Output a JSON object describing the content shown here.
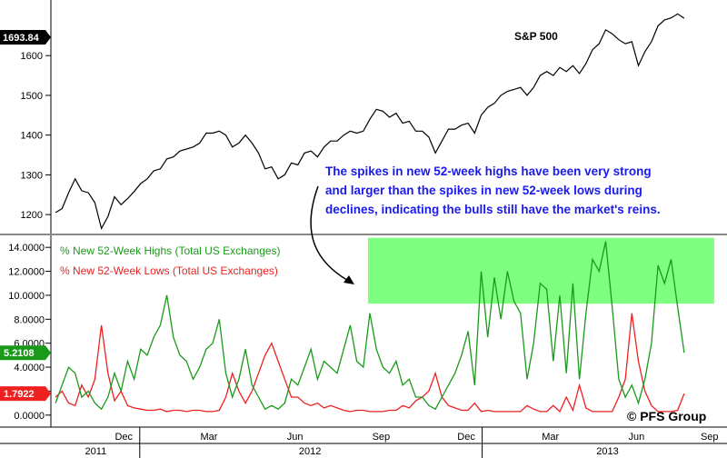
{
  "chart_data": [
    {
      "type": "line",
      "title": "S&P 500",
      "ylabel": "",
      "ylim": [
        1150,
        1740
      ],
      "yticks": [
        "1200",
        "1300",
        "1400",
        "1500",
        "1600"
      ],
      "last_value_label": "1693.84",
      "x_months": [
        "Dec",
        "Mar",
        "Jun",
        "Sep",
        "Dec",
        "Mar",
        "Jun",
        "Sep"
      ],
      "x_years": [
        "2011",
        "2012",
        "2013"
      ],
      "series": [
        {
          "name": "S&P 500",
          "color": "#000000",
          "x": [
            "2011-10-03",
            "2011-10-10",
            "2011-10-17",
            "2011-10-24",
            "2011-10-31",
            "2011-11-07",
            "2011-11-14",
            "2011-11-21",
            "2011-11-28",
            "2011-12-05",
            "2011-12-12",
            "2011-12-19",
            "2011-12-26",
            "2012-01-02",
            "2012-01-09",
            "2012-01-16",
            "2012-01-23",
            "2012-01-30",
            "2012-02-06",
            "2012-02-13",
            "2012-02-20",
            "2012-02-27",
            "2012-03-05",
            "2012-03-12",
            "2012-03-19",
            "2012-03-26",
            "2012-04-02",
            "2012-04-09",
            "2012-04-16",
            "2012-04-23",
            "2012-04-30",
            "2012-05-07",
            "2012-05-14",
            "2012-05-21",
            "2012-05-28",
            "2012-06-04",
            "2012-06-11",
            "2012-06-18",
            "2012-06-25",
            "2012-07-02",
            "2012-07-09",
            "2012-07-16",
            "2012-07-23",
            "2012-07-30",
            "2012-08-06",
            "2012-08-13",
            "2012-08-20",
            "2012-08-27",
            "2012-09-03",
            "2012-09-10",
            "2012-09-17",
            "2012-09-24",
            "2012-10-01",
            "2012-10-08",
            "2012-10-15",
            "2012-10-22",
            "2012-10-29",
            "2012-11-05",
            "2012-11-12",
            "2012-11-19",
            "2012-11-26",
            "2012-12-03",
            "2012-12-10",
            "2012-12-17",
            "2012-12-24",
            "2012-12-31",
            "2013-01-07",
            "2013-01-14",
            "2013-01-21",
            "2013-01-28",
            "2013-02-04",
            "2013-02-11",
            "2013-02-18",
            "2013-02-25",
            "2013-03-04",
            "2013-03-11",
            "2013-03-18",
            "2013-03-25",
            "2013-04-01",
            "2013-04-08",
            "2013-04-15",
            "2013-04-22",
            "2013-04-29",
            "2013-05-06",
            "2013-05-13",
            "2013-05-20",
            "2013-05-27",
            "2013-06-03",
            "2013-06-10",
            "2013-06-17",
            "2013-06-24",
            "2013-07-01",
            "2013-07-08",
            "2013-07-15",
            "2013-07-22",
            "2013-07-29",
            "2013-08-05"
          ],
          "values": [
            1205,
            1215,
            1255,
            1290,
            1260,
            1255,
            1230,
            1165,
            1195,
            1245,
            1225,
            1240,
            1258,
            1278,
            1290,
            1310,
            1315,
            1340,
            1345,
            1360,
            1365,
            1370,
            1380,
            1405,
            1405,
            1410,
            1400,
            1370,
            1380,
            1400,
            1380,
            1355,
            1315,
            1320,
            1290,
            1300,
            1330,
            1325,
            1355,
            1360,
            1345,
            1370,
            1385,
            1385,
            1400,
            1410,
            1405,
            1410,
            1440,
            1465,
            1460,
            1445,
            1455,
            1430,
            1435,
            1410,
            1410,
            1395,
            1355,
            1385,
            1415,
            1415,
            1425,
            1430,
            1405,
            1450,
            1470,
            1480,
            1500,
            1510,
            1515,
            1520,
            1500,
            1520,
            1550,
            1560,
            1550,
            1570,
            1560,
            1575,
            1555,
            1580,
            1615,
            1630,
            1665,
            1655,
            1640,
            1630,
            1635,
            1575,
            1610,
            1635,
            1675,
            1690,
            1695,
            1705,
            1694
          ]
        }
      ]
    },
    {
      "type": "line",
      "title": "",
      "ylabel": "",
      "ylim": [
        -1,
        15
      ],
      "yticks": [
        "0.0000",
        "2.0000",
        "4.0000",
        "6.0000",
        "8.0000",
        "10.0000",
        "12.0000",
        "14.0000"
      ],
      "x_months": [
        "Dec",
        "Mar",
        "Jun",
        "Sep",
        "Dec",
        "Mar",
        "Jun",
        "Sep"
      ],
      "x_years": [
        "2011",
        "2012",
        "2013"
      ],
      "series": [
        {
          "name": "% New 52-Week Highs (Total US Exchanges)",
          "color": "#1a9a1a",
          "last_value_label": "5.2108",
          "x": [
            "2011-10-03",
            "2011-10-10",
            "2011-10-17",
            "2011-10-24",
            "2011-10-31",
            "2011-11-07",
            "2011-11-14",
            "2011-11-21",
            "2011-11-28",
            "2011-12-05",
            "2011-12-12",
            "2011-12-19",
            "2011-12-26",
            "2012-01-02",
            "2012-01-09",
            "2012-01-16",
            "2012-01-23",
            "2012-01-30",
            "2012-02-06",
            "2012-02-13",
            "2012-02-20",
            "2012-02-27",
            "2012-03-05",
            "2012-03-12",
            "2012-03-19",
            "2012-03-26",
            "2012-04-02",
            "2012-04-09",
            "2012-04-16",
            "2012-04-23",
            "2012-04-30",
            "2012-05-07",
            "2012-05-14",
            "2012-05-21",
            "2012-05-28",
            "2012-06-04",
            "2012-06-11",
            "2012-06-18",
            "2012-06-25",
            "2012-07-02",
            "2012-07-09",
            "2012-07-16",
            "2012-07-23",
            "2012-07-30",
            "2012-08-06",
            "2012-08-13",
            "2012-08-20",
            "2012-08-27",
            "2012-09-03",
            "2012-09-10",
            "2012-09-17",
            "2012-09-24",
            "2012-10-01",
            "2012-10-08",
            "2012-10-15",
            "2012-10-22",
            "2012-10-29",
            "2012-11-05",
            "2012-11-12",
            "2012-11-19",
            "2012-11-26",
            "2012-12-03",
            "2012-12-10",
            "2012-12-17",
            "2012-12-24",
            "2012-12-31",
            "2013-01-07",
            "2013-01-14",
            "2013-01-21",
            "2013-01-28",
            "2013-02-04",
            "2013-02-11",
            "2013-02-18",
            "2013-02-25",
            "2013-03-04",
            "2013-03-11",
            "2013-03-18",
            "2013-03-25",
            "2013-04-01",
            "2013-04-08",
            "2013-04-15",
            "2013-04-22",
            "2013-04-29",
            "2013-05-06",
            "2013-05-13",
            "2013-05-20",
            "2013-05-27",
            "2013-06-03",
            "2013-06-10",
            "2013-06-17",
            "2013-06-24",
            "2013-07-01",
            "2013-07-08",
            "2013-07-15",
            "2013-07-22",
            "2013-07-29",
            "2013-08-05"
          ],
          "values": [
            1.0,
            2.5,
            4.0,
            3.5,
            1.5,
            2.0,
            1.0,
            0.5,
            1.5,
            3.5,
            2.0,
            4.5,
            3.0,
            5.5,
            5.0,
            6.5,
            7.5,
            10.0,
            6.5,
            5.0,
            4.5,
            3.0,
            4.0,
            5.5,
            6.0,
            8.0,
            3.5,
            1.5,
            3.0,
            5.5,
            2.5,
            1.5,
            0.5,
            0.8,
            0.5,
            1.0,
            3.0,
            2.5,
            4.0,
            5.5,
            3.0,
            4.5,
            4.0,
            3.5,
            5.5,
            7.5,
            4.5,
            4.0,
            8.5,
            5.5,
            4.0,
            3.5,
            4.5,
            2.5,
            3.0,
            1.5,
            1.5,
            0.8,
            0.5,
            1.5,
            2.5,
            3.5,
            5.0,
            7.0,
            2.5,
            12.0,
            6.5,
            11.5,
            8.0,
            12.0,
            9.5,
            8.5,
            3.0,
            6.0,
            11.0,
            10.5,
            4.5,
            10.0,
            3.5,
            11.0,
            3.0,
            8.5,
            13.0,
            12.0,
            14.5,
            9.0,
            3.0,
            1.5,
            2.5,
            1.0,
            3.0,
            6.0,
            12.5,
            11.0,
            13.0,
            9.0,
            5.2
          ]
        },
        {
          "name": "% New 52-Week Lows (Total US Exchanges)",
          "color": "#ee2020",
          "last_value_label": "1.7922",
          "x": [
            "2011-10-03",
            "2011-10-10",
            "2011-10-17",
            "2011-10-24",
            "2011-10-31",
            "2011-11-07",
            "2011-11-14",
            "2011-11-21",
            "2011-11-28",
            "2011-12-05",
            "2011-12-12",
            "2011-12-19",
            "2011-12-26",
            "2012-01-02",
            "2012-01-09",
            "2012-01-16",
            "2012-01-23",
            "2012-01-30",
            "2012-02-06",
            "2012-02-13",
            "2012-02-20",
            "2012-02-27",
            "2012-03-05",
            "2012-03-12",
            "2012-03-19",
            "2012-03-26",
            "2012-04-02",
            "2012-04-09",
            "2012-04-16",
            "2012-04-23",
            "2012-04-30",
            "2012-05-07",
            "2012-05-14",
            "2012-05-21",
            "2012-05-28",
            "2012-06-04",
            "2012-06-11",
            "2012-06-18",
            "2012-06-25",
            "2012-07-02",
            "2012-07-09",
            "2012-07-16",
            "2012-07-23",
            "2012-07-30",
            "2012-08-06",
            "2012-08-13",
            "2012-08-20",
            "2012-08-27",
            "2012-09-03",
            "2012-09-10",
            "2012-09-17",
            "2012-09-24",
            "2012-10-01",
            "2012-10-08",
            "2012-10-15",
            "2012-10-22",
            "2012-10-29",
            "2012-11-05",
            "2012-11-12",
            "2012-11-19",
            "2012-11-26",
            "2012-12-03",
            "2012-12-10",
            "2012-12-17",
            "2012-12-24",
            "2012-12-31",
            "2013-01-07",
            "2013-01-14",
            "2013-01-21",
            "2013-01-28",
            "2013-02-04",
            "2013-02-11",
            "2013-02-18",
            "2013-02-25",
            "2013-03-04",
            "2013-03-11",
            "2013-03-18",
            "2013-03-25",
            "2013-04-01",
            "2013-04-08",
            "2013-04-15",
            "2013-04-22",
            "2013-04-29",
            "2013-05-06",
            "2013-05-13",
            "2013-05-20",
            "2013-05-27",
            "2013-06-03",
            "2013-06-10",
            "2013-06-17",
            "2013-06-24",
            "2013-07-01",
            "2013-07-08",
            "2013-07-15",
            "2013-07-22",
            "2013-07-29",
            "2013-08-05"
          ],
          "values": [
            1.5,
            2.0,
            1.0,
            0.8,
            2.5,
            1.5,
            3.0,
            7.5,
            3.5,
            1.2,
            2.0,
            0.8,
            0.6,
            0.5,
            0.4,
            0.4,
            0.5,
            0.3,
            0.4,
            0.4,
            0.3,
            0.4,
            0.4,
            0.3,
            0.3,
            0.4,
            1.5,
            3.5,
            2.0,
            1.0,
            2.0,
            3.5,
            5.0,
            6.0,
            4.5,
            3.0,
            1.5,
            1.5,
            1.0,
            0.8,
            1.0,
            0.6,
            0.8,
            0.6,
            0.4,
            0.3,
            0.4,
            0.4,
            0.3,
            0.3,
            0.3,
            0.4,
            0.4,
            0.8,
            0.6,
            1.2,
            1.5,
            2.0,
            3.5,
            1.5,
            0.8,
            0.6,
            0.4,
            0.4,
            1.0,
            0.3,
            0.4,
            0.3,
            0.3,
            0.3,
            0.3,
            0.3,
            0.8,
            0.5,
            0.3,
            0.3,
            0.8,
            0.3,
            1.5,
            0.4,
            2.5,
            0.6,
            0.3,
            0.3,
            0.3,
            0.3,
            1.5,
            3.0,
            8.5,
            4.5,
            2.0,
            0.8,
            0.3,
            0.3,
            0.3,
            0.4,
            1.8
          ]
        }
      ]
    }
  ],
  "annotation": {
    "lines": [
      "The spikes in new 52-week highs have been very strong",
      "and larger than the spikes in new 52-week lows during",
      "declines, indicating the bulls still have the market's reins."
    ]
  },
  "highlight_box": {
    "color": "#7fff7f",
    "y_from": 9.3,
    "y_to": 14.8,
    "x_from": "2012-09-01",
    "x_to": "2013-09-06"
  },
  "copyright": "© PFS Group",
  "colors": {
    "background": "#ffffff",
    "axis": "#000000",
    "panel_divider": "#888888",
    "annotation": "#1a1aee"
  }
}
